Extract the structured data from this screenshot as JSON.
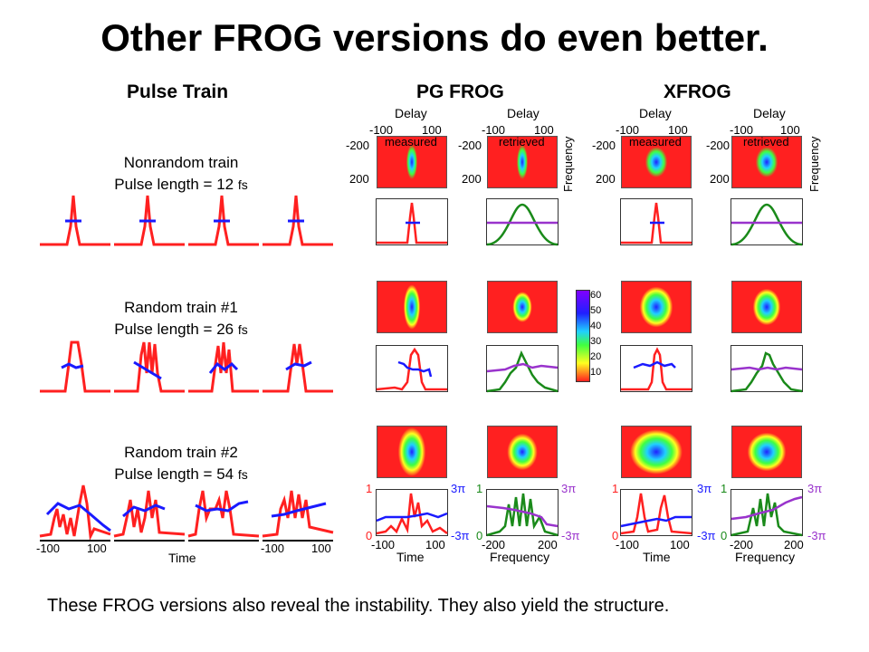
{
  "title": "Other FROG versions do even better.",
  "caption": "These FROG versions also reveal the instability. They also yield the structure.",
  "columns": {
    "pulse_train": "Pulse Train",
    "pg_frog": "PG FROG",
    "xfrog": "XFROG"
  },
  "labels": {
    "delay": "Delay",
    "frequency": "Frequency",
    "measured": "measured",
    "retrieved": "retrieved",
    "time": "Time",
    "tick_m100": "-100",
    "tick_100": "100",
    "tick_m200": "-200",
    "tick_200": "200",
    "one": "1",
    "zero": "0",
    "three_pi": "3π",
    "minus_three_pi": "-3π"
  },
  "groups": [
    {
      "line1": "Nonrandom train",
      "line2": "Pulse length = 12",
      "unit": "fs"
    },
    {
      "line1": "Random train #1",
      "line2": "Pulse length = 26",
      "unit": "fs"
    },
    {
      "line1": "Random train #2",
      "line2": "Pulse length = 54",
      "unit": "fs"
    }
  ],
  "colorbar": {
    "ticks": [
      "60",
      "50",
      "40",
      "30",
      "20",
      "10"
    ]
  },
  "colors": {
    "intensity": "#ff2020",
    "phase": "#1a1aff",
    "spectrum": "#1a8a1a",
    "spectral_phase": "#9933cc"
  }
}
